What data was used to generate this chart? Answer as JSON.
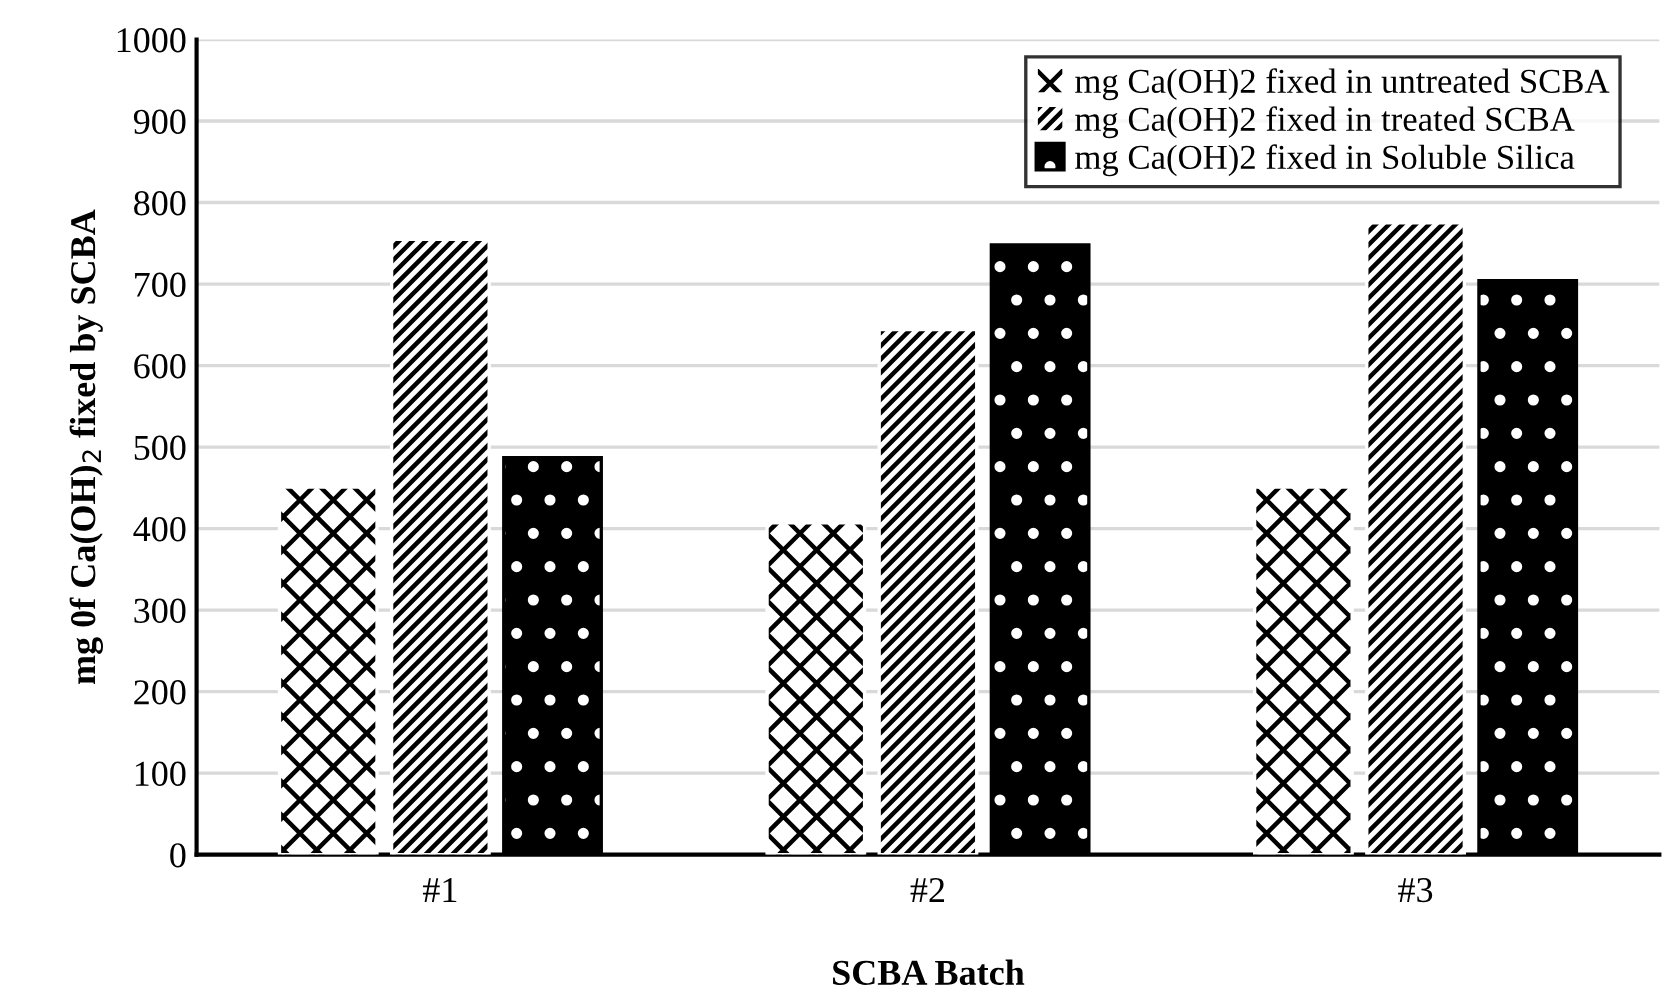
{
  "chart_data": {
    "type": "bar",
    "xlabel": "SCBA Batch",
    "ylabel": "mg 0f Ca(OH)$_{2}$ fixed by SCBA",
    "categories": [
      "#1",
      "#2",
      "#3"
    ],
    "series": [
      {
        "name": "mg Ca(OH)2 fixed in untreated SCBA",
        "color": "#ffffff",
        "values": [
          451,
          407,
          451
        ]
      },
      {
        "name": "mg Ca(OH)2 fixed in treated SCBA",
        "color": "#ffffff",
        "values": [
          755,
          644,
          775
        ]
      },
      {
        "name": "mg Ca(OH)2 fixed in Soluble Silica",
        "color": "#000000",
        "values": [
          487,
          748,
          704
        ]
      }
    ],
    "ylim": [
      0,
      1000
    ],
    "yticks": [
      0,
      100,
      200,
      300,
      400,
      500,
      600,
      700,
      800,
      900,
      1000
    ],
    "grid": "y",
    "legend": "top right"
  }
}
